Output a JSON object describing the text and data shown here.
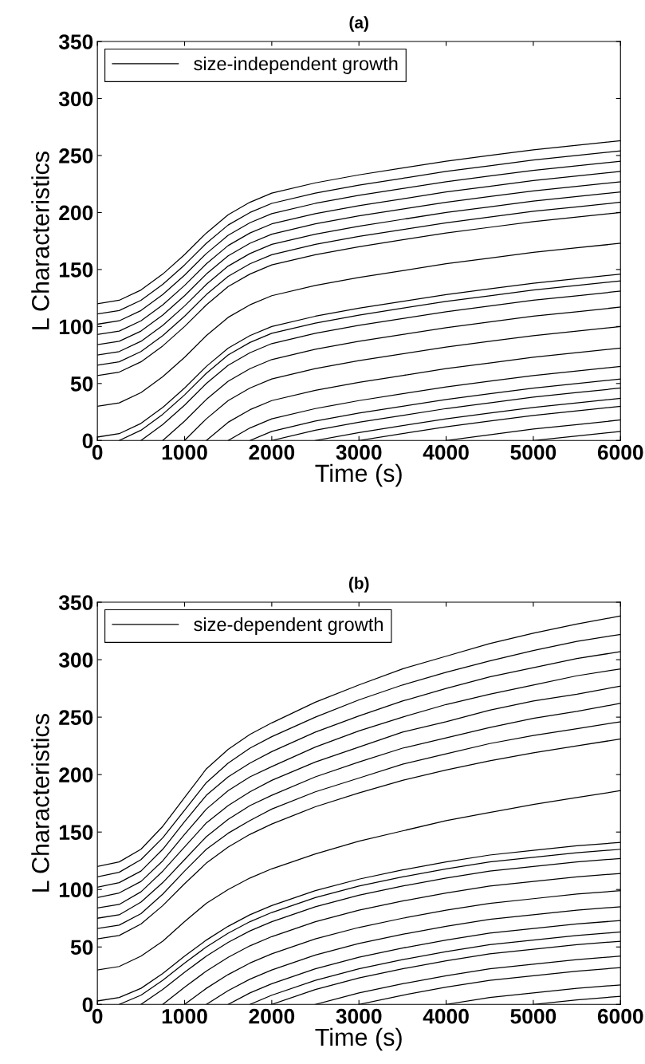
{
  "chart_data": [
    {
      "type": "line",
      "title": "(a)",
      "xlabel": "Time (s)",
      "ylabel": "L Characteristics",
      "xlim": [
        0,
        6000
      ],
      "ylim": [
        0,
        350
      ],
      "xticks": [
        0,
        1000,
        2000,
        3000,
        4000,
        5000,
        6000
      ],
      "yticks": [
        0,
        50,
        100,
        150,
        200,
        250,
        300,
        350
      ],
      "grid": false,
      "legend": "top left",
      "marker": "none",
      "line_style": "solid",
      "x": [
        0,
        250,
        500,
        750,
        1000,
        1250,
        1500,
        1750,
        2000,
        2500,
        3000,
        3500,
        4000,
        4500,
        5000,
        5500,
        6000
      ],
      "series": [
        {
          "name": "size-independent growth",
          "color": "#000000",
          "values": [
            120,
            123,
            132,
            146,
            163,
            182,
            198,
            209,
            217,
            226,
            233,
            239,
            245,
            250,
            255,
            259,
            263
          ]
        },
        {
          "color": "#000000",
          "values": [
            111,
            114,
            123,
            137,
            154,
            173,
            189,
            200,
            208,
            217,
            224,
            230,
            236,
            241,
            246,
            250,
            254
          ]
        },
        {
          "color": "#000000",
          "values": [
            102,
            105,
            114,
            128,
            145,
            164,
            180,
            191,
            199,
            208,
            215,
            221,
            227,
            232,
            237,
            241,
            245
          ]
        },
        {
          "color": "#000000",
          "values": [
            93,
            96,
            105,
            119,
            136,
            155,
            171,
            182,
            190,
            199,
            206,
            212,
            218,
            223,
            228,
            232,
            236
          ]
        },
        {
          "color": "#000000",
          "values": [
            84,
            87,
            96,
            110,
            127,
            146,
            162,
            173,
            181,
            190,
            197,
            203,
            209,
            214,
            219,
            223,
            227
          ]
        },
        {
          "color": "#000000",
          "values": [
            75,
            78,
            87,
            101,
            118,
            137,
            153,
            164,
            172,
            181,
            188,
            194,
            200,
            205,
            210,
            214,
            218
          ]
        },
        {
          "color": "#000000",
          "values": [
            66,
            69,
            78,
            92,
            109,
            128,
            144,
            155,
            163,
            172,
            179,
            185,
            191,
            196,
            201,
            205,
            209
          ]
        },
        {
          "color": "#000000",
          "values": [
            57,
            60,
            69,
            83,
            100,
            119,
            135,
            146,
            154,
            163,
            170,
            176,
            182,
            187,
            192,
            196,
            200
          ]
        },
        {
          "color": "#000000",
          "values": [
            30,
            33,
            42,
            56,
            73,
            92,
            108,
            119,
            127,
            136,
            143,
            149,
            155,
            160,
            165,
            169,
            173
          ]
        },
        {
          "color": "#000000",
          "values": [
            3,
            6,
            15,
            29,
            46,
            65,
            81,
            92,
            100,
            109,
            116,
            122,
            128,
            133,
            138,
            142,
            146
          ]
        },
        {
          "color": "#000000",
          "x": [
            250,
            500,
            750,
            1000,
            1250,
            1500,
            1750,
            2000,
            2500,
            3000,
            3500,
            4000,
            4500,
            5000,
            5500,
            6000
          ],
          "values": [
            0,
            9,
            23,
            40,
            59,
            75,
            86,
            94,
            103,
            110,
            116,
            122,
            127,
            132,
            136,
            140
          ]
        },
        {
          "color": "#000000",
          "x": [
            500,
            750,
            1000,
            1250,
            1500,
            1750,
            2000,
            2500,
            3000,
            3500,
            4000,
            4500,
            5000,
            5500,
            6000
          ],
          "values": [
            0,
            14,
            31,
            50,
            66,
            77,
            85,
            94,
            101,
            107,
            113,
            118,
            123,
            127,
            131
          ]
        },
        {
          "color": "#000000",
          "x": [
            750,
            1000,
            1250,
            1500,
            1750,
            2000,
            2500,
            3000,
            3500,
            4000,
            4500,
            5000,
            5500,
            6000
          ],
          "values": [
            0,
            17,
            36,
            52,
            63,
            71,
            80,
            87,
            93,
            99,
            104,
            109,
            113,
            117
          ]
        },
        {
          "color": "#000000",
          "x": [
            1000,
            1250,
            1500,
            1750,
            2000,
            2500,
            3000,
            3500,
            4000,
            4500,
            5000,
            5500,
            6000
          ],
          "values": [
            0,
            19,
            35,
            46,
            54,
            63,
            70,
            76,
            82,
            87,
            92,
            96,
            100
          ]
        },
        {
          "color": "#000000",
          "x": [
            1250,
            1500,
            1750,
            2000,
            2500,
            3000,
            3500,
            4000,
            4500,
            5000,
            5500,
            6000
          ],
          "values": [
            0,
            16,
            27,
            35,
            44,
            51,
            57,
            63,
            68,
            73,
            77,
            81
          ]
        },
        {
          "color": "#000000",
          "x": [
            1500,
            1750,
            2000,
            2500,
            3000,
            3500,
            4000,
            4500,
            5000,
            5500,
            6000
          ],
          "values": [
            0,
            11,
            19,
            28,
            35,
            41,
            47,
            52,
            57,
            61,
            65
          ]
        },
        {
          "color": "#000000",
          "x": [
            1750,
            2000,
            2500,
            3000,
            3500,
            4000,
            4500,
            5000,
            5500,
            6000
          ],
          "values": [
            0,
            8,
            17,
            24,
            30,
            36,
            41,
            46,
            50,
            54
          ]
        },
        {
          "color": "#000000",
          "x": [
            2000,
            2500,
            3000,
            3500,
            4000,
            4500,
            5000,
            5500,
            6000
          ],
          "values": [
            0,
            9,
            16,
            22,
            28,
            33,
            38,
            42,
            46
          ]
        },
        {
          "color": "#000000",
          "x": [
            2500,
            3000,
            3500,
            4000,
            4500,
            5000,
            5500,
            6000
          ],
          "values": [
            0,
            7,
            13,
            19,
            24,
            29,
            33,
            37
          ]
        },
        {
          "color": "#000000",
          "x": [
            3000,
            3500,
            4000,
            4500,
            5000,
            5500,
            6000
          ],
          "values": [
            0,
            6,
            12,
            17,
            22,
            26,
            30
          ]
        },
        {
          "color": "#000000",
          "x": [
            4000,
            4500,
            5000,
            5500,
            6000
          ],
          "values": [
            0,
            5,
            10,
            14,
            18
          ]
        },
        {
          "color": "#000000",
          "x": [
            5000,
            5500,
            6000
          ],
          "values": [
            0,
            4,
            8
          ]
        }
      ]
    },
    {
      "type": "line",
      "title": "(b)",
      "xlabel": "Time (s)",
      "ylabel": "L Characteristics",
      "xlim": [
        0,
        6000
      ],
      "ylim": [
        0,
        350
      ],
      "xticks": [
        0,
        1000,
        2000,
        3000,
        4000,
        5000,
        6000
      ],
      "yticks": [
        0,
        50,
        100,
        150,
        200,
        250,
        300,
        350
      ],
      "grid": false,
      "legend": "top left",
      "marker": "none",
      "line_style": "solid",
      "x": [
        0,
        250,
        500,
        750,
        1000,
        1250,
        1500,
        1750,
        2000,
        2500,
        3000,
        3500,
        4000,
        4500,
        5000,
        5500,
        6000
      ],
      "series": [
        {
          "name": "size-dependent growth",
          "color": "#000000",
          "values": [
            120,
            124,
            135,
            155,
            180,
            205,
            222,
            235,
            245,
            263,
            278,
            292,
            303,
            314,
            323,
            331,
            338
          ]
        },
        {
          "color": "#000000",
          "values": [
            111,
            115,
            126,
            145,
            169,
            193,
            210,
            223,
            233,
            250,
            265,
            278,
            289,
            299,
            308,
            316,
            322
          ]
        },
        {
          "color": "#000000",
          "values": [
            102,
            106,
            116,
            135,
            159,
            182,
            198,
            210,
            220,
            237,
            251,
            264,
            275,
            285,
            293,
            301,
            307
          ]
        },
        {
          "color": "#000000",
          "values": [
            93,
            97,
            107,
            125,
            148,
            170,
            186,
            198,
            207,
            224,
            238,
            250,
            261,
            270,
            278,
            286,
            292
          ]
        },
        {
          "color": "#000000",
          "values": [
            84,
            87,
            98,
            116,
            137,
            158,
            173,
            185,
            195,
            211,
            224,
            237,
            246,
            256,
            264,
            270,
            277
          ]
        },
        {
          "color": "#000000",
          "values": [
            75,
            78,
            89,
            106,
            126,
            146,
            161,
            173,
            182,
            198,
            211,
            223,
            232,
            241,
            249,
            255,
            262
          ]
        },
        {
          "color": "#000000",
          "values": [
            66,
            69,
            79,
            96,
            116,
            135,
            149,
            160,
            170,
            185,
            197,
            209,
            218,
            227,
            234,
            240,
            246
          ]
        },
        {
          "color": "#000000",
          "values": [
            57,
            60,
            70,
            86,
            105,
            123,
            137,
            148,
            157,
            172,
            184,
            195,
            204,
            212,
            219,
            225,
            231
          ]
        },
        {
          "color": "#000000",
          "values": [
            30,
            33,
            42,
            55,
            72,
            88,
            100,
            110,
            118,
            131,
            142,
            151,
            160,
            167,
            174,
            180,
            186
          ]
        },
        {
          "color": "#000000",
          "values": [
            3,
            6,
            14,
            27,
            42,
            56,
            68,
            78,
            86,
            99,
            109,
            117,
            124,
            130,
            134,
            138,
            141
          ]
        },
        {
          "color": "#000000",
          "x": [
            250,
            500,
            750,
            1000,
            1250,
            1500,
            1750,
            2000,
            2500,
            3000,
            3500,
            4000,
            4500,
            5000,
            5500,
            6000
          ],
          "values": [
            0,
            8,
            21,
            36,
            50,
            62,
            72,
            80,
            93,
            103,
            111,
            118,
            124,
            128,
            132,
            135
          ]
        },
        {
          "color": "#000000",
          "x": [
            500,
            750,
            1000,
            1250,
            1500,
            1750,
            2000,
            2500,
            3000,
            3500,
            4000,
            4500,
            5000,
            5500,
            6000
          ],
          "values": [
            0,
            13,
            28,
            42,
            54,
            64,
            72,
            85,
            95,
            103,
            110,
            116,
            120,
            124,
            127
          ]
        },
        {
          "color": "#000000",
          "x": [
            750,
            1000,
            1250,
            1500,
            1750,
            2000,
            2500,
            3000,
            3500,
            4000,
            4500,
            5000,
            5500,
            6000
          ],
          "values": [
            0,
            15,
            29,
            41,
            51,
            59,
            72,
            82,
            90,
            97,
            103,
            107,
            111,
            114
          ]
        },
        {
          "color": "#000000",
          "x": [
            1000,
            1250,
            1500,
            1750,
            2000,
            2500,
            3000,
            3500,
            4000,
            4500,
            5000,
            5500,
            6000
          ],
          "values": [
            0,
            14,
            26,
            36,
            44,
            57,
            67,
            75,
            82,
            88,
            92,
            96,
            99
          ]
        },
        {
          "color": "#000000",
          "x": [
            1250,
            1500,
            1750,
            2000,
            2500,
            3000,
            3500,
            4000,
            4500,
            5000,
            5500,
            6000
          ],
          "values": [
            0,
            12,
            22,
            30,
            43,
            53,
            61,
            68,
            74,
            78,
            82,
            85
          ]
        },
        {
          "color": "#000000",
          "x": [
            1500,
            1750,
            2000,
            2500,
            3000,
            3500,
            4000,
            4500,
            5000,
            5500,
            6000
          ],
          "values": [
            0,
            10,
            18,
            31,
            41,
            49,
            56,
            62,
            66,
            70,
            73
          ]
        },
        {
          "color": "#000000",
          "x": [
            1750,
            2000,
            2500,
            3000,
            3500,
            4000,
            4500,
            5000,
            5500,
            6000
          ],
          "values": [
            0,
            8,
            21,
            31,
            39,
            46,
            52,
            56,
            60,
            63
          ]
        },
        {
          "color": "#000000",
          "x": [
            2000,
            2500,
            3000,
            3500,
            4000,
            4500,
            5000,
            5500,
            6000
          ],
          "values": [
            0,
            13,
            23,
            31,
            38,
            44,
            48,
            52,
            55
          ]
        },
        {
          "color": "#000000",
          "x": [
            2500,
            3000,
            3500,
            4000,
            4500,
            5000,
            5500,
            6000
          ],
          "values": [
            0,
            10,
            18,
            25,
            31,
            35,
            39,
            42
          ]
        },
        {
          "color": "#000000",
          "x": [
            3000,
            3500,
            4000,
            4500,
            5000,
            5500,
            6000
          ],
          "values": [
            0,
            8,
            15,
            21,
            25,
            29,
            32
          ]
        },
        {
          "color": "#000000",
          "x": [
            4000,
            4500,
            5000,
            5500,
            6000
          ],
          "values": [
            0,
            6,
            10,
            14,
            17
          ]
        },
        {
          "color": "#000000",
          "x": [
            5000,
            5500,
            6000
          ],
          "values": [
            0,
            4,
            7
          ]
        }
      ]
    }
  ]
}
